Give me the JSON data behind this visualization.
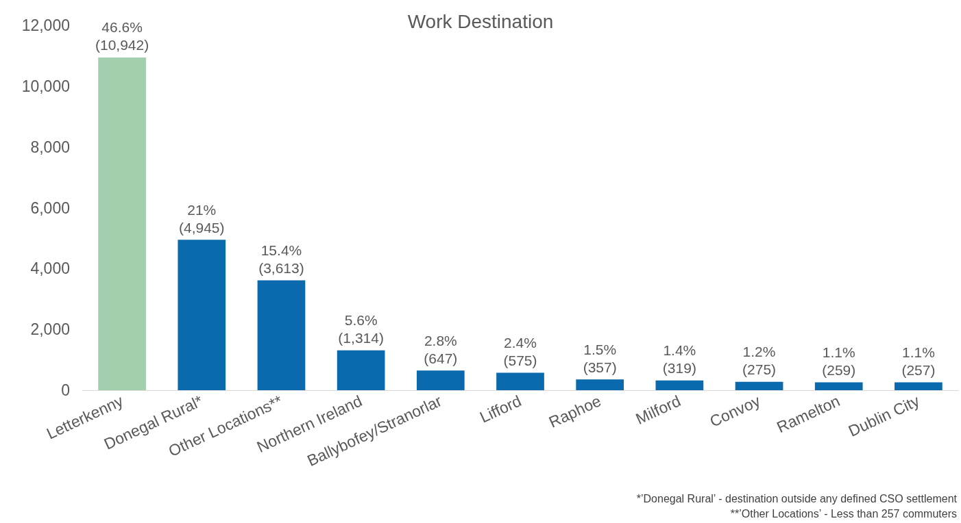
{
  "chart_data": {
    "type": "bar",
    "title": "Work Destination",
    "categories": [
      "Letterkenny",
      "Donegal Rural*",
      "Other Locations**",
      "Northern Ireland",
      "Ballybofey/Stranorlar",
      "Lifford",
      "Raphoe",
      "Milford",
      "Convoy",
      "Ramelton",
      "Dublin City"
    ],
    "values": [
      10942,
      4945,
      3613,
      1314,
      647,
      575,
      357,
      319,
      275,
      259,
      257
    ],
    "colors": [
      "#a3cfae",
      "#0b6aad",
      "#0b6aad",
      "#0b6aad",
      "#0b6aad",
      "#0b6aad",
      "#0b6aad",
      "#0b6aad",
      "#0b6aad",
      "#0b6aad",
      "#0b6aad"
    ],
    "value_labels": [
      "46.6%\n(10,942)",
      "21%\n(4,945)",
      "15.4%\n(3,613)",
      "5.6%\n(1,314)",
      "2.8%\n(647)",
      "2.4%\n(575)",
      "1.5%\n(357)",
      "1.4%\n(319)",
      "1.2%\n(275)",
      "1.1%\n(259)",
      "1.1%\n(257)"
    ],
    "ylim": [
      0,
      12000
    ],
    "yticks": [
      0,
      {
        "value": 2000,
        "label": "2,000"
      },
      {
        "value": 4000,
        "label": "4,000"
      },
      {
        "value": 6000,
        "label": "6,000"
      },
      {
        "value": 8000,
        "label": "8,000"
      },
      {
        "value": 10000,
        "label": "10,000"
      },
      {
        "value": 12000,
        "label": "12,000"
      }
    ],
    "grid": false,
    "annotations": [
      "*’Donegal Rural’ - destination outside any defined CSO settlement",
      "**’Other Locations’ - Less than 257 commuters"
    ]
  }
}
